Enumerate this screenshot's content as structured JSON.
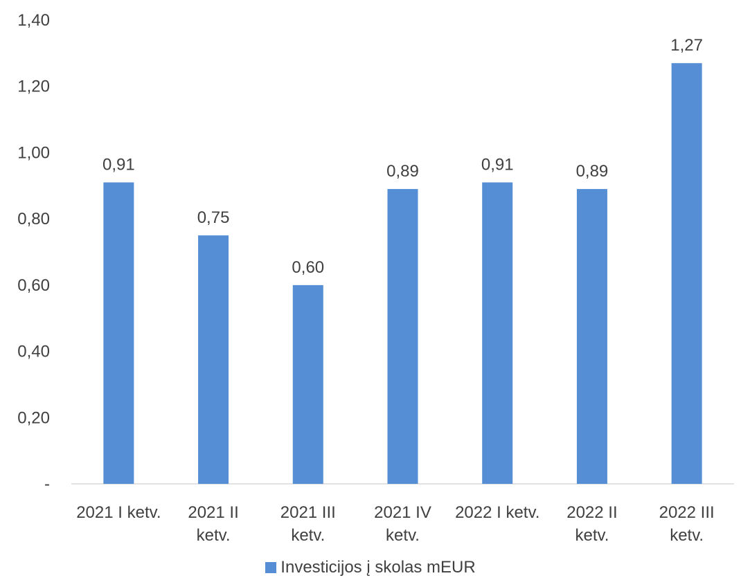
{
  "chart_data": {
    "type": "bar",
    "categories": [
      [
        "2021 I ketv."
      ],
      [
        "2021 II",
        "ketv."
      ],
      [
        "2021 III",
        "ketv."
      ],
      [
        "2021 IV",
        "ketv."
      ],
      [
        "2022 I ketv."
      ],
      [
        "2022 II",
        "ketv."
      ],
      [
        "2022 III",
        "ketv."
      ]
    ],
    "series": [
      {
        "name": "Investicijos į skolas mEUR",
        "values": [
          0.91,
          0.75,
          0.6,
          0.89,
          0.91,
          0.89,
          1.27
        ],
        "labels": [
          "0,91",
          "0,75",
          "0,60",
          "0,89",
          "0,91",
          "0,89",
          "1,27"
        ]
      }
    ],
    "ylim": [
      0,
      1.4
    ],
    "yticks": [
      0,
      0.2,
      0.4,
      0.6,
      0.8,
      1.0,
      1.2,
      1.4
    ],
    "ytick_labels": [
      "-",
      "0,20",
      "0,40",
      "0,60",
      "0,80",
      "1,00",
      "1,20",
      "1,40"
    ],
    "grid": false,
    "legend_position": "bottom",
    "colors": {
      "bar": "#558ed5",
      "axis": "#d9d9d9",
      "text": "#404040"
    }
  }
}
